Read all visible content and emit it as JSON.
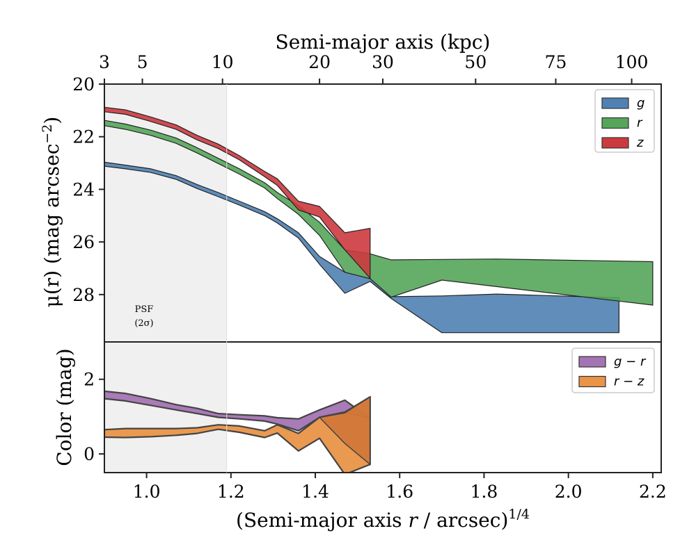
{
  "colors": {
    "g": "#4f81b3",
    "r": "#55a65a",
    "z": "#cc3a3f",
    "gr": "#a474b3",
    "rz": "#e99447",
    "psf_shade": "#f0f0f0"
  },
  "chart_data": [
    {
      "type": "area",
      "panel": "surface-brightness",
      "ylabel_main": "μ(r) (mag arcsec",
      "ylabel_sup": "−2",
      "ylabel_tail": ")",
      "ylim": [
        20,
        29.8
      ],
      "y_inverted": true,
      "yticks": [
        20,
        22,
        24,
        26,
        28
      ],
      "top_xlabel": "Semi-major axis (kpc)",
      "top_ticks": [
        {
          "label": "3",
          "x": 0.9
        },
        {
          "label": "5",
          "x": 0.99
        },
        {
          "label": "10",
          "x": 1.18
        },
        {
          "label": "20",
          "x": 1.41
        },
        {
          "label": "30",
          "x": 1.56
        },
        {
          "label": "50",
          "x": 1.78
        },
        {
          "label": "75",
          "x": 1.97
        },
        {
          "label": "100",
          "x": 2.15
        }
      ],
      "psf_label_1": "PSF",
      "psf_label_2": "(2σ)",
      "psf_x_end": 1.19,
      "legend_loc": "upper right",
      "series": [
        {
          "name": "g",
          "upper": [
            [
              0.9,
              22.97
            ],
            [
              0.95,
              23.08
            ],
            [
              1.01,
              23.22
            ],
            [
              1.07,
              23.48
            ],
            [
              1.12,
              23.82
            ],
            [
              1.17,
              24.12
            ],
            [
              1.22,
              24.45
            ],
            [
              1.28,
              24.85
            ],
            [
              1.31,
              25.12
            ],
            [
              1.36,
              25.65
            ],
            [
              1.41,
              26.55
            ],
            [
              1.47,
              27.15
            ],
            [
              1.53,
              27.38
            ],
            [
              1.58,
              28.08
            ],
            [
              1.7,
              28.05
            ],
            [
              1.83,
              27.98
            ],
            [
              2.12,
              28.12
            ]
          ],
          "lower": [
            [
              0.9,
              23.12
            ],
            [
              0.95,
              23.22
            ],
            [
              1.01,
              23.36
            ],
            [
              1.07,
              23.62
            ],
            [
              1.12,
              23.97
            ],
            [
              1.17,
              24.28
            ],
            [
              1.22,
              24.6
            ],
            [
              1.28,
              25.0
            ],
            [
              1.31,
              25.28
            ],
            [
              1.36,
              25.85
            ],
            [
              1.41,
              26.85
            ],
            [
              1.47,
              27.95
            ],
            [
              1.53,
              27.5
            ],
            [
              1.58,
              28.15
            ],
            [
              1.7,
              29.45
            ],
            [
              1.83,
              29.45
            ],
            [
              2.12,
              29.45
            ]
          ]
        },
        {
          "name": "r",
          "upper": [
            [
              0.9,
              21.38
            ],
            [
              0.95,
              21.52
            ],
            [
              1.01,
              21.75
            ],
            [
              1.07,
              22.05
            ],
            [
              1.12,
              22.42
            ],
            [
              1.17,
              22.82
            ],
            [
              1.22,
              23.22
            ],
            [
              1.28,
              23.75
            ],
            [
              1.31,
              24.12
            ],
            [
              1.36,
              24.62
            ],
            [
              1.41,
              25.25
            ],
            [
              1.47,
              26.3
            ],
            [
              1.53,
              26.45
            ],
            [
              1.58,
              26.68
            ],
            [
              1.83,
              26.65
            ],
            [
              2.2,
              26.75
            ]
          ],
          "lower": [
            [
              0.9,
              21.58
            ],
            [
              0.95,
              21.72
            ],
            [
              1.01,
              21.95
            ],
            [
              1.07,
              22.25
            ],
            [
              1.12,
              22.62
            ],
            [
              1.17,
              23.02
            ],
            [
              1.22,
              23.42
            ],
            [
              1.28,
              23.95
            ],
            [
              1.31,
              24.35
            ],
            [
              1.36,
              24.95
            ],
            [
              1.41,
              25.75
            ],
            [
              1.47,
              27.15
            ],
            [
              1.53,
              27.4
            ],
            [
              1.58,
              28.1
            ],
            [
              1.7,
              27.45
            ],
            [
              2.2,
              28.4
            ]
          ]
        },
        {
          "name": "z",
          "upper": [
            [
              0.9,
              20.88
            ],
            [
              0.95,
              20.98
            ],
            [
              1.01,
              21.25
            ],
            [
              1.07,
              21.55
            ],
            [
              1.12,
              21.95
            ],
            [
              1.17,
              22.28
            ],
            [
              1.22,
              22.72
            ],
            [
              1.28,
              23.32
            ],
            [
              1.31,
              23.6
            ],
            [
              1.36,
              24.45
            ],
            [
              1.41,
              24.65
            ],
            [
              1.47,
              25.65
            ],
            [
              1.53,
              25.48
            ]
          ],
          "lower": [
            [
              0.9,
              21.05
            ],
            [
              0.95,
              21.15
            ],
            [
              1.01,
              21.42
            ],
            [
              1.07,
              21.72
            ],
            [
              1.12,
              22.12
            ],
            [
              1.17,
              22.45
            ],
            [
              1.22,
              22.88
            ],
            [
              1.28,
              23.52
            ],
            [
              1.31,
              23.85
            ],
            [
              1.36,
              24.78
            ],
            [
              1.41,
              25.05
            ],
            [
              1.47,
              26.3
            ],
            [
              1.53,
              27.38
            ]
          ]
        }
      ]
    },
    {
      "type": "area",
      "panel": "color",
      "ylabel": "Color (mag)",
      "xlabel_main": "(Semi-major axis ",
      "xlabel_ital": "r",
      "xlabel_tail": " / arcsec)",
      "xlabel_sup": "1/4",
      "xlim": [
        0.9,
        2.22
      ],
      "ylim": [
        -0.5,
        3.0
      ],
      "yticks": [
        0,
        2
      ],
      "xticks": [
        "1.0",
        "1.2",
        "1.4",
        "1.6",
        "1.8",
        "2.0",
        "2.2"
      ],
      "legend_loc": "upper right",
      "series": [
        {
          "name": "g − r",
          "upper": [
            [
              0.9,
              1.68
            ],
            [
              0.95,
              1.62
            ],
            [
              1.01,
              1.48
            ],
            [
              1.07,
              1.32
            ],
            [
              1.12,
              1.22
            ],
            [
              1.17,
              1.08
            ],
            [
              1.22,
              1.05
            ],
            [
              1.28,
              1.02
            ],
            [
              1.31,
              0.97
            ],
            [
              1.36,
              0.94
            ],
            [
              1.41,
              1.18
            ],
            [
              1.47,
              1.44
            ],
            [
              1.53,
              0.95
            ]
          ],
          "lower": [
            [
              0.9,
              1.48
            ],
            [
              0.95,
              1.42
            ],
            [
              1.01,
              1.3
            ],
            [
              1.07,
              1.18
            ],
            [
              1.12,
              1.08
            ],
            [
              1.17,
              0.98
            ],
            [
              1.22,
              0.94
            ],
            [
              1.28,
              0.88
            ],
            [
              1.31,
              0.8
            ],
            [
              1.36,
              0.62
            ],
            [
              1.41,
              0.98
            ],
            [
              1.47,
              1.12
            ],
            [
              1.53,
              0.95
            ]
          ]
        },
        {
          "name": "r − z",
          "upper": [
            [
              0.9,
              0.65
            ],
            [
              0.95,
              0.68
            ],
            [
              1.01,
              0.68
            ],
            [
              1.07,
              0.68
            ],
            [
              1.12,
              0.7
            ],
            [
              1.17,
              0.78
            ],
            [
              1.22,
              0.75
            ],
            [
              1.28,
              0.62
            ],
            [
              1.31,
              0.78
            ],
            [
              1.36,
              0.55
            ],
            [
              1.41,
              0.98
            ],
            [
              1.47,
              1.12
            ],
            [
              1.53,
              1.53
            ]
          ],
          "lower": [
            [
              0.9,
              0.45
            ],
            [
              0.95,
              0.44
            ],
            [
              1.01,
              0.46
            ],
            [
              1.07,
              0.5
            ],
            [
              1.12,
              0.55
            ],
            [
              1.17,
              0.66
            ],
            [
              1.22,
              0.58
            ],
            [
              1.28,
              0.44
            ],
            [
              1.31,
              0.56
            ],
            [
              1.36,
              0.08
            ],
            [
              1.41,
              0.42
            ],
            [
              1.47,
              -0.55
            ],
            [
              1.53,
              -0.28
            ]
          ]
        }
      ],
      "extra_band": {
        "series": "r − z",
        "upper": [
          [
            1.41,
            0.98
          ],
          [
            1.47,
            1.1
          ],
          [
            1.53,
            1.53
          ]
        ],
        "lower": [
          [
            1.41,
            0.98
          ],
          [
            1.47,
            0.28
          ],
          [
            1.53,
            -0.28
          ]
        ]
      }
    }
  ]
}
